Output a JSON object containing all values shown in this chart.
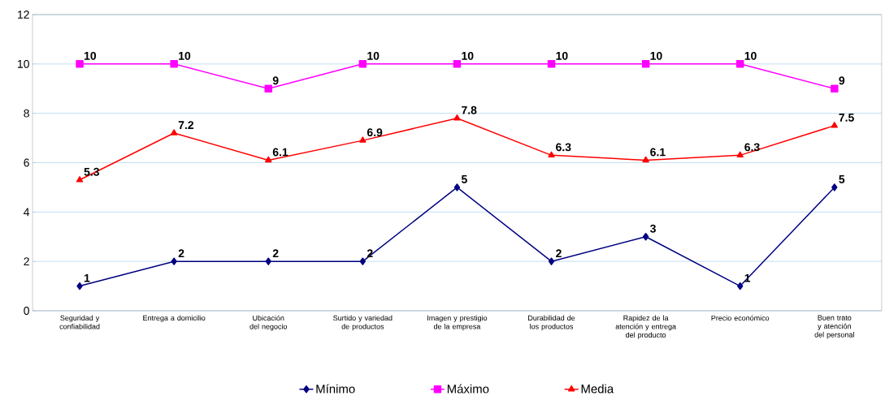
{
  "chart_data": {
    "type": "line",
    "categories": [
      "Seguridad y confiabilidad",
      "Entrega a domicilio",
      "Ubicación del negocio",
      "Surtido y variedad de productos",
      "Imagen y prestigio de la empresa",
      "Durabilidad de los productos",
      "Rapidez de la atención y entrega del producto",
      "Precio económico",
      "Buen trato y atención del personal"
    ],
    "series": [
      {
        "name": "Mínimo",
        "color": "#000080",
        "marker": "diamond",
        "values": [
          1,
          2,
          2,
          2,
          5,
          2,
          3,
          1,
          5
        ]
      },
      {
        "name": "Máximo",
        "color": "#ff00ff",
        "marker": "square",
        "values": [
          10,
          10,
          9,
          10,
          10,
          10,
          10,
          10,
          9
        ]
      },
      {
        "name": "Media",
        "color": "#ff0000",
        "marker": "triangle",
        "values": [
          5.3,
          7.2,
          6.1,
          6.9,
          7.8,
          6.3,
          6.1,
          6.3,
          7.5
        ]
      }
    ],
    "ylim": [
      0,
      12
    ],
    "yticks": [
      0,
      2,
      4,
      6,
      8,
      10,
      12
    ],
    "grid": "y",
    "legend": "bottom",
    "data_labels": true
  }
}
